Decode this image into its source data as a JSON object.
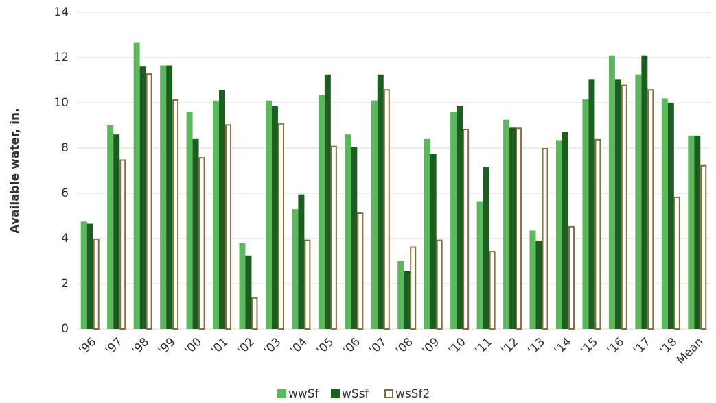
{
  "chart_data": {
    "type": "bar",
    "y_label": "Available water, in.",
    "categories": [
      "'96",
      "'97",
      "'98",
      "'99",
      "'00",
      "'01",
      "'02",
      "'03",
      "'04",
      "'05",
      "'06",
      "'07",
      "'08",
      "'09",
      "'10",
      "'11",
      "'12",
      "'13",
      "'14",
      "'15",
      "'16",
      "'17",
      "'18",
      "Mean"
    ],
    "series": [
      {
        "name": "wwSf",
        "color": "#5cb85c",
        "style": "solid",
        "values": [
          4.75,
          9.0,
          12.65,
          11.65,
          9.6,
          10.1,
          3.8,
          10.1,
          5.3,
          10.35,
          8.6,
          10.1,
          3.0,
          8.4,
          9.6,
          5.65,
          9.25,
          4.35,
          8.35,
          10.15,
          12.1,
          11.25,
          10.2,
          8.55
        ]
      },
      {
        "name": "wSsf",
        "color": "#1b5e20",
        "style": "solid",
        "values": [
          4.65,
          8.6,
          11.6,
          11.65,
          8.4,
          10.55,
          3.25,
          9.85,
          5.95,
          11.25,
          8.05,
          11.25,
          2.55,
          7.75,
          9.85,
          7.15,
          8.9,
          3.9,
          8.7,
          11.05,
          11.05,
          12.1,
          10.0,
          8.55
        ]
      },
      {
        "name": "wsSf2",
        "color": "#8c6d3f",
        "style": "outline",
        "values": [
          4.0,
          7.5,
          11.3,
          10.15,
          7.6,
          9.05,
          1.4,
          9.1,
          3.95,
          8.1,
          5.15,
          10.6,
          3.65,
          3.95,
          8.85,
          3.45,
          8.9,
          8.0,
          4.55,
          8.4,
          10.8,
          10.6,
          5.85,
          7.25
        ]
      }
    ],
    "ylim": [
      0,
      14
    ],
    "yticks": [
      0,
      2,
      4,
      6,
      8,
      10,
      12,
      14
    ],
    "grid": true,
    "legend": "bottom"
  }
}
